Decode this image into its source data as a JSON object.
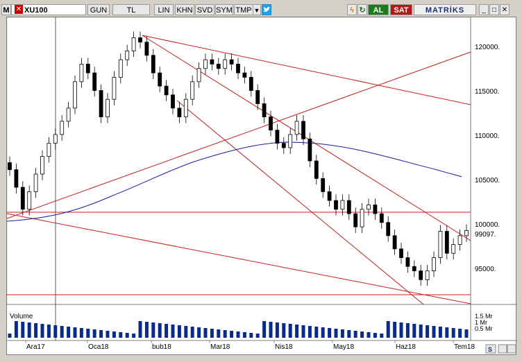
{
  "toolbar": {
    "m_label": "M",
    "symbol": "XU100",
    "period": "GUN",
    "currency": "TL",
    "scale": "LIN",
    "tools": [
      "KHN",
      "SVD",
      "SYM",
      "TMP"
    ],
    "al_label": "AL",
    "sat_label": "SAT",
    "brand": "MATRİKS"
  },
  "chart": {
    "price_axis": [
      "120000.",
      "115000.",
      "110000.",
      "105000.",
      "100000.",
      "95000."
    ],
    "last_price": "99097.",
    "volume_label": "Volume",
    "volume_axis": [
      "1.5 Mr",
      "1 Mr",
      "0.5 Mr"
    ],
    "time_axis": [
      "Ara17",
      "Oca18",
      "bub18",
      "Mar18",
      "Nis18",
      "May18",
      "Haz18",
      "Tem18"
    ],
    "colors": {
      "candle": "#000000",
      "trendline": "#c81e1e",
      "moving_average": "#1a1aa0",
      "volume": "#0a2a8c"
    }
  },
  "chart_data": {
    "type": "candlestick",
    "series": [
      {
        "name": "XU100",
        "close": [
          106000,
          104000,
          101500,
          103500,
          105500,
          107500,
          109000,
          110000,
          111500,
          113000,
          116000,
          118000,
          117000,
          115000,
          112000,
          114000,
          116500,
          118500,
          119500,
          121000,
          120500,
          119000,
          117000,
          115500,
          114500,
          113000,
          112000,
          114000,
          116000,
          117500,
          118500,
          118000,
          117500,
          118500,
          118000,
          117000,
          116500,
          115000,
          113500,
          112000,
          110500,
          109000,
          108500,
          110000,
          111500,
          109500,
          107000,
          105000,
          103500,
          102500,
          101500,
          102500,
          101000,
          99500,
          101500,
          102000,
          101000,
          100000,
          98500,
          97000,
          96000,
          95000,
          94500,
          93500,
          94500,
          96000,
          99000,
          96500,
          97500,
          98500,
          99097
        ]
      }
    ],
    "ylim": [
      91000,
      123000
    ]
  }
}
